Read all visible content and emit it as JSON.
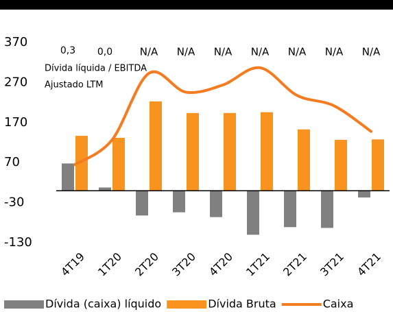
{
  "chart_data": {
    "type": "bar",
    "categories": [
      "4T19",
      "1T20",
      "2T20",
      "3T20",
      "4T20",
      "1T21",
      "2T21",
      "3T21",
      "4T21"
    ],
    "series": [
      {
        "name": "Dívida (caixa) líquido",
        "type": "bar",
        "color": "#808080",
        "values": [
          68,
          8,
          -62,
          -54,
          -66,
          -110,
          -91,
          -93,
          -17
        ]
      },
      {
        "name": "Dívida Bruta",
        "type": "bar",
        "color": "#f7931e",
        "values": [
          137,
          132,
          223,
          194,
          194,
          196,
          153,
          127,
          128
        ]
      },
      {
        "name": "Caixa",
        "type": "line",
        "color": "#f47b20",
        "values": [
          65,
          126,
          293,
          246,
          264,
          307,
          238,
          212,
          148
        ]
      }
    ],
    "ratios": [
      "0,3",
      "0,0",
      "N/A",
      "N/A",
      "N/A",
      "N/A",
      "N/A",
      "N/A",
      "N/A"
    ],
    "annotation": [
      "Dívida líquida / EBITDA",
      "Ajustado LTM"
    ],
    "ylim": [
      -130,
      370
    ],
    "yticks": [
      -130,
      -30,
      70,
      170,
      270,
      370
    ]
  }
}
